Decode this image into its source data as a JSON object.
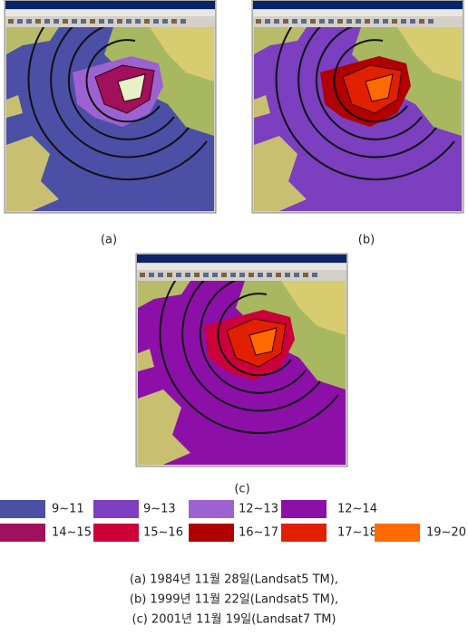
{
  "panels": [
    {
      "label": "(a)"
    },
    {
      "label": "(b)"
    },
    {
      "label": "(c)"
    }
  ],
  "legend": [
    {
      "label": "9∼11",
      "color": "#4b4fa6"
    },
    {
      "label": "9∼13",
      "color": "#7b3fc0"
    },
    {
      "label": "12∼13",
      "color": "#9c62d2"
    },
    {
      "label": "12∼14",
      "color": "#8c10a8"
    },
    {
      "label": "14∼15",
      "color": "#a0105c"
    },
    {
      "label": "15∼16",
      "color": "#cc0038"
    },
    {
      "label": "16∼17",
      "color": "#b00000"
    },
    {
      "label": "17∼18",
      "color": "#e02000"
    },
    {
      "label": "19∼20",
      "color": "#ff6a00"
    }
  ],
  "caption": [
    "(a) 1984년 11월 28일(Landsat5 TM),",
    "(b) 1999년 11월 22일(Landsat5 TM),",
    "(c) 2001년 11월 19일(Landsat7 TM)"
  ]
}
